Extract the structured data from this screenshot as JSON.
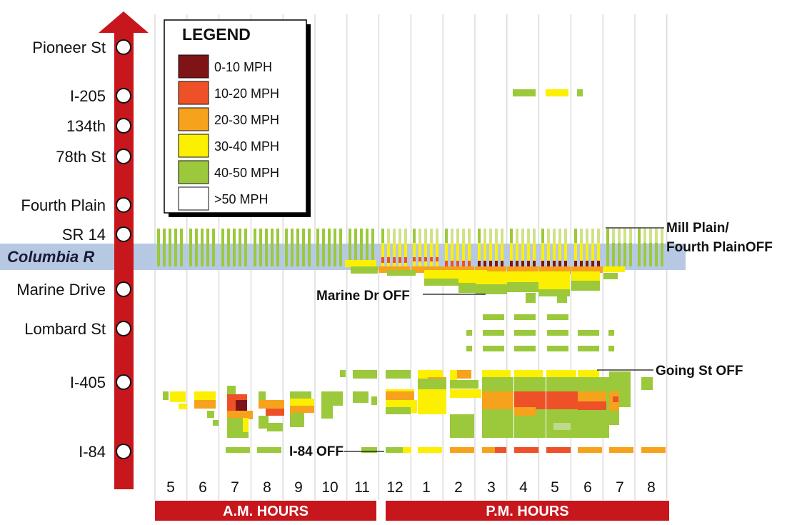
{
  "chart_data": {
    "type": "heatmap",
    "stops": [
      "Pioneer St",
      "I-205",
      "134th",
      "78th St",
      "Fourth Plain",
      "SR 14",
      "Marine Drive",
      "Lombard St",
      "I-405",
      "I-84"
    ],
    "river_label": "Columbia R",
    "hours": [
      "5",
      "6",
      "7",
      "8",
      "9",
      "10",
      "11",
      "12",
      "1",
      "2",
      "3",
      "4",
      "5",
      "6",
      "7",
      "8"
    ],
    "periods": [
      {
        "label": "A.M. HOURS",
        "from_hour": 0,
        "to_hour": 6
      },
      {
        "label": "P.M. HOURS",
        "from_hour": 7,
        "to_hour": 15
      }
    ],
    "legend": {
      "title": "LEGEND",
      "items": [
        {
          "label": "0-10 MPH",
          "color": "#7f1416"
        },
        {
          "label": "10-20 MPH",
          "color": "#ee5127"
        },
        {
          "label": "20-30 MPH",
          "color": "#f6a21d"
        },
        {
          "label": "30-40 MPH",
          "color": "#fcf000"
        },
        {
          "label": "40-50 MPH",
          "color": "#9bc93b"
        },
        {
          "label": ">50 MPH",
          "color": "#ffffff"
        }
      ]
    },
    "annotations": {
      "mill_plain_1": "Mill Plain/",
      "mill_plain_2": "Fourth PlainOFF",
      "marine_dr": "Marine Dr OFF",
      "going_st": "Going St OFF",
      "i84": "I-84 OFF"
    }
  },
  "colors": {
    "route": "#c8161d",
    "river": "#b7c9e2",
    "grid": "#c9c9c9",
    "light_green": "#cfe28a",
    "pale_green": "#c0d98a"
  }
}
